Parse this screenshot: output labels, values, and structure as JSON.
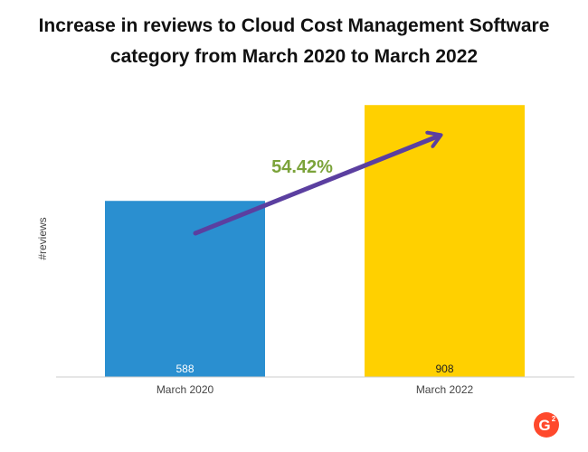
{
  "chart_data": {
    "type": "bar",
    "title_lines": [
      "Increase in reviews to Cloud Cost Management Software",
      "category from March 2020 to March 2022"
    ],
    "xlabel": "",
    "ylabel": "#reviews",
    "categories": [
      "March 2020",
      "March 2022"
    ],
    "values": [
      588,
      908
    ],
    "value_labels": [
      "588",
      "908"
    ],
    "colors": [
      "#2a8fd0",
      "#ffd000"
    ],
    "ylim": [
      0,
      960
    ],
    "grid": false,
    "annotation": {
      "text": "54.42%",
      "color": "#7ba33a",
      "arrow_color": "#5b3fa0"
    }
  },
  "logo": {
    "text": "G",
    "superscript": "2",
    "color": "#ff492c"
  }
}
